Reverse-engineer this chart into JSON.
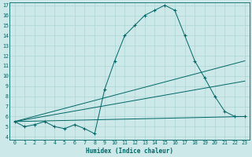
{
  "xlabel": "Humidex (Indice chaleur)",
  "bg_color": "#cce8e8",
  "line_color": "#006666",
  "grid_color": "#aad4d4",
  "xlim": [
    -0.5,
    23.5
  ],
  "ylim": [
    3.7,
    17.3
  ],
  "xticks": [
    0,
    1,
    2,
    3,
    4,
    5,
    6,
    7,
    8,
    9,
    10,
    11,
    12,
    13,
    14,
    15,
    16,
    17,
    18,
    19,
    20,
    21,
    22,
    23
  ],
  "yticks": [
    4,
    5,
    6,
    7,
    8,
    9,
    10,
    11,
    12,
    13,
    14,
    15,
    16,
    17
  ],
  "curve_x": [
    0,
    1,
    2,
    3,
    4,
    5,
    6,
    7,
    8,
    9,
    10,
    11,
    12,
    13,
    14,
    15,
    16,
    17,
    18,
    19,
    20,
    21,
    22,
    23
  ],
  "curve_y": [
    5.5,
    5.0,
    5.2,
    5.5,
    5.0,
    4.8,
    5.2,
    4.8,
    4.3,
    8.7,
    11.5,
    14.0,
    15.0,
    16.0,
    16.5,
    17.0,
    16.5,
    14.0,
    11.5,
    9.8,
    8.0,
    6.5,
    6.0,
    6.0
  ],
  "flat_line": {
    "x": [
      0,
      23
    ],
    "y": [
      5.5,
      6.0
    ]
  },
  "mid_line": {
    "x": [
      0,
      23
    ],
    "y": [
      5.5,
      9.5
    ]
  },
  "steep_line": {
    "x": [
      0,
      23
    ],
    "y": [
      5.5,
      11.5
    ]
  }
}
